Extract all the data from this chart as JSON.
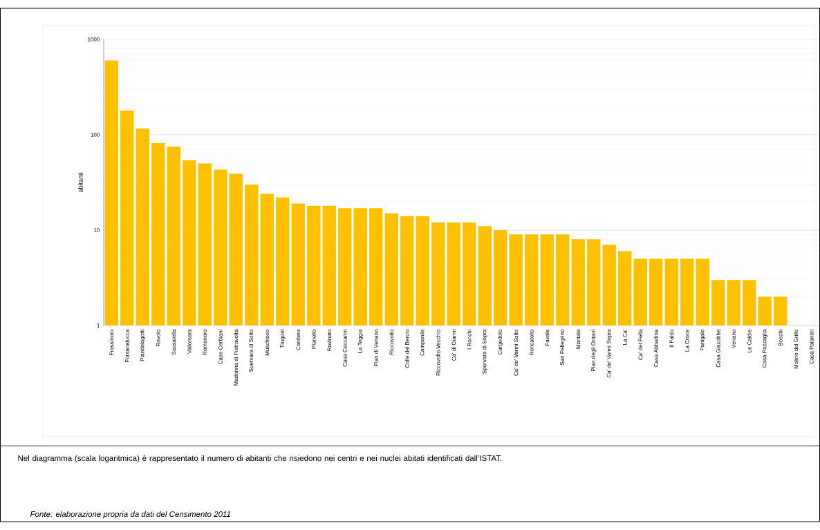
{
  "chart_data": {
    "type": "bar",
    "ylabel": "abitanti",
    "log": "y",
    "grid": "y",
    "color": "#ffc000",
    "ylim": [
      1,
      1000
    ],
    "yticks": [
      1,
      10,
      100,
      1000
    ],
    "categories": [
      "Frassinoro",
      "Fontanalucca",
      "Piandelagotti",
      "Rovolo",
      "Sassatella",
      "Vallorsara",
      "Romanoro",
      "Case Cerbiani",
      "Madonna di Pietravolta",
      "Spervara di Sotto",
      "Muschioso",
      "Trugoni",
      "Cantiere",
      "Pianello",
      "Rovinato",
      "Casa Ceccarini",
      "La Teggia",
      "Pian di Venano",
      "Riccovolto",
      "Colle del Bercio",
      "Campanile",
      "Riccovolto Vecchio",
      "Ca' di Gianni",
      "I Ronchi",
      "Spervara di Sopra",
      "Cargedolo",
      "Ca' de' Vanni Sotto",
      "Roncatello",
      "Favale",
      "San Pellegrino",
      "Montale",
      "Pian degli Ontani",
      "Ca' de' Vanni Sopra",
      "La Ca'",
      "Ca' del Pella",
      "Casa Abbadina",
      "Il Faldo",
      "La Croce",
      "Panigale",
      "Casa Giacobbe",
      "Venano",
      "Le Caldie",
      "Casa Pazzaglia",
      "Boschi",
      "Molino del Grillo",
      "Casa Palandri"
    ],
    "values": [
      600,
      179,
      116,
      82,
      75,
      54,
      50,
      43,
      39,
      30,
      24,
      22,
      19,
      18,
      18,
      17,
      17,
      17,
      15,
      14,
      14,
      12,
      12,
      12,
      11,
      10,
      9,
      9,
      9,
      9,
      8,
      8,
      7,
      6,
      5,
      5,
      5,
      5,
      5,
      3,
      3,
      3,
      2,
      2,
      null,
      null
    ],
    "annotations": [
      "Nel diagramma (scala logaritmica) è rappresentato il numero di abitanti che risiedono nei centri e nei nuclei abitati identificati dall’ISTAT.",
      "*Fonte: elaborazione propria da dati del Censimento 2011*"
    ]
  }
}
